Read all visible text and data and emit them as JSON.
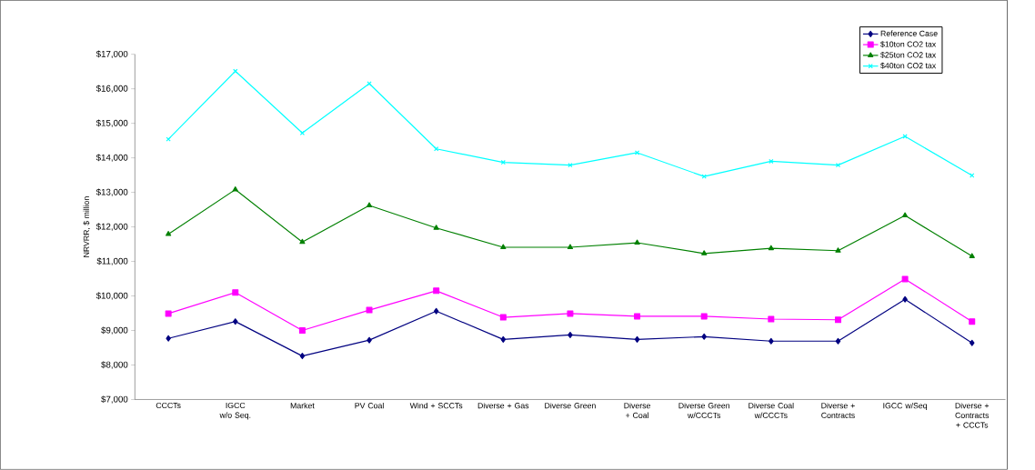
{
  "chart_data": {
    "type": "line",
    "ylabel": "NRVRR, $ million",
    "categories": [
      "CCCTs",
      "IGCC w/o Seq.",
      "Market",
      "PV Coal",
      "Wind + SCCTs",
      "Diverse + Gas",
      "Diverse Green",
      "Diverse + Coal",
      "Diverse Green w/CCCTs",
      "Diverse Coal w/CCCTs",
      "Diverse + Contracts",
      "IGCC w/Seq",
      "Diverse + Contracts + CCCTs"
    ],
    "series": [
      {
        "name": "Reference Case",
        "color": "#000080",
        "marker": "diamond",
        "values": [
          8770,
          9260,
          8260,
          8720,
          9560,
          8740,
          8870,
          8740,
          8820,
          8690,
          8690,
          9900,
          8640
        ]
      },
      {
        "name": "$10ton CO2 tax",
        "color": "#ff00ff",
        "marker": "square",
        "values": [
          9490,
          10100,
          9000,
          9590,
          10150,
          9380,
          9490,
          9410,
          9410,
          9330,
          9310,
          10490,
          9260
        ]
      },
      {
        "name": "$25ton CO2 tax",
        "color": "#008000",
        "marker": "triangle",
        "values": [
          11790,
          13080,
          11560,
          12620,
          11970,
          11410,
          11410,
          11540,
          11230,
          11380,
          11310,
          12330,
          11150
        ]
      },
      {
        "name": "$40ton CO2 tax",
        "color": "#00ffff",
        "marker": "cross",
        "values": [
          14540,
          16510,
          14720,
          16150,
          14260,
          13870,
          13790,
          14150,
          13460,
          13900,
          13790,
          14620,
          13490
        ]
      }
    ],
    "ylim": [
      7000,
      17000
    ],
    "yticks": [
      {
        "value": 7000,
        "label": "$7,000"
      },
      {
        "value": 8000,
        "label": "$8,000"
      },
      {
        "value": 9000,
        "label": "$9,000"
      },
      {
        "value": 10000,
        "label": "$10,000"
      },
      {
        "value": 11000,
        "label": "$11,000"
      },
      {
        "value": 12000,
        "label": "$12,000"
      },
      {
        "value": 13000,
        "label": "$13,000"
      },
      {
        "value": 14000,
        "label": "$14,000"
      },
      {
        "value": 15000,
        "label": "$15,000"
      },
      {
        "value": 16000,
        "label": "$16,000"
      },
      {
        "value": 17000,
        "label": "$17,000"
      }
    ],
    "grid": false,
    "legend": "top right",
    "line_style": "solid"
  }
}
